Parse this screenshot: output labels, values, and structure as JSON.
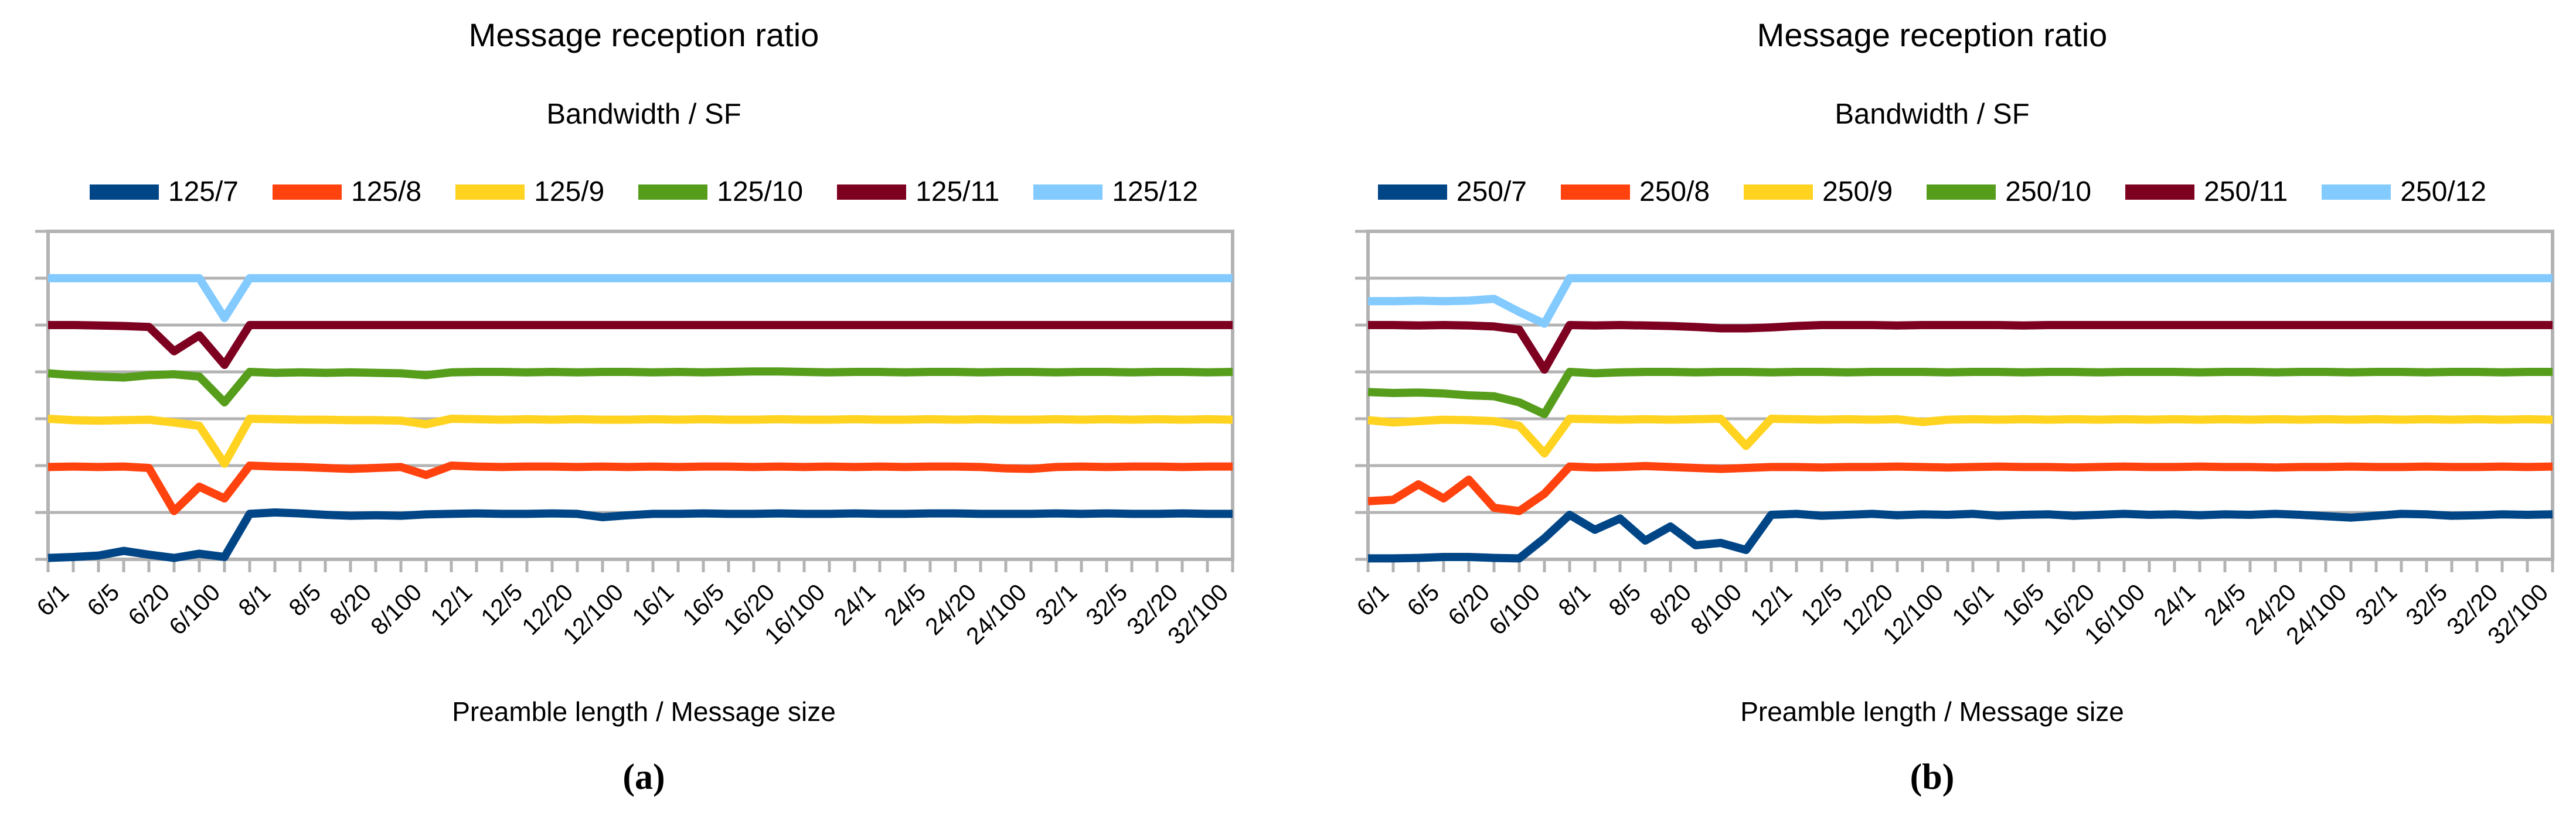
{
  "page_background": "#FFFFFF",
  "axis_color": "#B3B3B3",
  "chart_data": [
    {
      "type": "line",
      "title": "Message reception ratio",
      "subtitle": "Bandwidth / SF",
      "xlabel": "Preamble length / Message size",
      "caption": "(a)",
      "legend_position": "top",
      "grid": "horizontal",
      "ylim": [
        0,
        7
      ],
      "y_tick_labels": [],
      "x_tick_labels": [
        "6/1",
        "6/5",
        "6/20",
        "6/100",
        "8/1",
        "8/5",
        "8/20",
        "8/100",
        "12/1",
        "12/5",
        "12/20",
        "12/100",
        "16/1",
        "16/5",
        "16/20",
        "16/100",
        "24/1",
        "24/5",
        "24/20",
        "24/100",
        "32/1",
        "32/5",
        "32/20",
        "32/100"
      ],
      "points_per_tick_label": 2,
      "n_points": 48,
      "note": "Each series shows a 0-1 reception ratio drawn at vertical offset = series index (125/7 lowest band, 125/12 top band).",
      "series": [
        {
          "name": "125/7",
          "color": "#004586",
          "offset": 0,
          "values": [
            0.03,
            0.05,
            0.08,
            0.18,
            0.1,
            0.03,
            0.12,
            0.05,
            0.97,
            1.0,
            0.98,
            0.95,
            0.93,
            0.94,
            0.93,
            0.96,
            0.97,
            0.98,
            0.97,
            0.97,
            0.98,
            0.97,
            0.9,
            0.94,
            0.97,
            0.97,
            0.98,
            0.97,
            0.97,
            0.98,
            0.97,
            0.97,
            0.98,
            0.97,
            0.97,
            0.98,
            0.98,
            0.97,
            0.97,
            0.97,
            0.98,
            0.97,
            0.98,
            0.97,
            0.97,
            0.98,
            0.97,
            0.97
          ]
        },
        {
          "name": "125/8",
          "color": "#FF420E",
          "offset": 1,
          "values": [
            0.97,
            0.98,
            0.97,
            0.98,
            0.95,
            0.03,
            0.55,
            0.3,
            1.0,
            0.98,
            0.97,
            0.95,
            0.93,
            0.95,
            0.97,
            0.8,
            1.0,
            0.98,
            0.97,
            0.98,
            0.98,
            0.97,
            0.98,
            0.97,
            0.98,
            0.97,
            0.98,
            0.98,
            0.97,
            0.98,
            0.97,
            0.98,
            0.97,
            0.98,
            0.97,
            0.98,
            0.98,
            0.97,
            0.94,
            0.93,
            0.97,
            0.98,
            0.97,
            0.98,
            0.98,
            0.97,
            0.98,
            0.98
          ]
        },
        {
          "name": "125/9",
          "color": "#FFD320",
          "offset": 2,
          "values": [
            1.0,
            0.97,
            0.96,
            0.97,
            0.98,
            0.92,
            0.85,
            0.04,
            1.0,
            0.99,
            0.98,
            0.98,
            0.97,
            0.97,
            0.96,
            0.88,
            1.0,
            0.99,
            0.98,
            0.99,
            0.98,
            0.99,
            0.98,
            0.98,
            0.99,
            0.98,
            0.99,
            0.98,
            0.98,
            0.99,
            0.98,
            0.98,
            0.99,
            0.98,
            0.98,
            0.99,
            0.98,
            0.99,
            0.98,
            0.98,
            0.99,
            0.98,
            0.99,
            0.98,
            0.99,
            0.98,
            0.99,
            0.98
          ]
        },
        {
          "name": "125/10",
          "color": "#579D1C",
          "offset": 3,
          "values": [
            0.97,
            0.93,
            0.9,
            0.88,
            0.93,
            0.95,
            0.9,
            0.35,
            1.0,
            0.98,
            0.99,
            0.98,
            0.99,
            0.98,
            0.97,
            0.93,
            0.99,
            1.0,
            1.0,
            0.99,
            1.0,
            0.99,
            1.0,
            1.0,
            0.99,
            1.0,
            0.99,
            1.0,
            1.01,
            1.01,
            1.0,
            0.99,
            1.0,
            1.0,
            0.99,
            1.0,
            1.0,
            0.99,
            1.0,
            1.0,
            0.99,
            1.0,
            1.0,
            0.99,
            1.0,
            1.0,
            0.99,
            1.0
          ]
        },
        {
          "name": "125/11",
          "color": "#7E0021",
          "offset": 4,
          "values": [
            1.0,
            1.0,
            0.99,
            0.98,
            0.96,
            0.44,
            0.78,
            0.15,
            1.0,
            1.0,
            1.0,
            1.0,
            1.0,
            1.0,
            1.0,
            1.0,
            1.0,
            1.0,
            1.0,
            1.0,
            1.0,
            1.0,
            1.0,
            1.0,
            1.0,
            1.0,
            1.0,
            1.0,
            1.0,
            1.0,
            1.0,
            1.0,
            1.0,
            1.0,
            1.0,
            1.0,
            1.0,
            1.0,
            1.0,
            1.0,
            1.0,
            1.0,
            1.0,
            1.0,
            1.0,
            1.0,
            1.0,
            1.0
          ]
        },
        {
          "name": "125/12",
          "color": "#83CAFF",
          "offset": 5,
          "values": [
            1.0,
            1.0,
            1.0,
            1.0,
            1.0,
            1.0,
            1.0,
            0.15,
            1.0,
            1.0,
            1.0,
            1.0,
            1.0,
            1.0,
            1.0,
            1.0,
            1.0,
            1.0,
            1.0,
            1.0,
            1.0,
            1.0,
            1.0,
            1.0,
            1.0,
            1.0,
            1.0,
            1.0,
            1.0,
            1.0,
            1.0,
            1.0,
            1.0,
            1.0,
            1.0,
            1.0,
            1.0,
            1.0,
            1.0,
            1.0,
            1.0,
            1.0,
            1.0,
            1.0,
            1.0,
            1.0,
            1.0,
            1.0
          ]
        }
      ]
    },
    {
      "type": "line",
      "title": "Message reception ratio",
      "subtitle": "Bandwidth / SF",
      "xlabel": "Preamble length / Message size",
      "caption": "(b)",
      "legend_position": "top",
      "grid": "horizontal",
      "ylim": [
        0,
        7
      ],
      "y_tick_labels": [],
      "x_tick_labels": [
        "6/1",
        "6/5",
        "6/20",
        "6/100",
        "8/1",
        "8/5",
        "8/20",
        "8/100",
        "12/1",
        "12/5",
        "12/20",
        "12/100",
        "16/1",
        "16/5",
        "16/20",
        "16/100",
        "24/1",
        "24/5",
        "24/20",
        "24/100",
        "32/1",
        "32/5",
        "32/20",
        "32/100"
      ],
      "points_per_tick_label": 2,
      "n_points": 48,
      "note": "Each series shows a 0-1 reception ratio drawn at vertical offset = series index (250/7 lowest band, 250/12 top band).",
      "series": [
        {
          "name": "250/7",
          "color": "#004586",
          "offset": 0,
          "values": [
            0.02,
            0.02,
            0.03,
            0.05,
            0.05,
            0.03,
            0.02,
            0.45,
            0.95,
            0.63,
            0.87,
            0.4,
            0.7,
            0.3,
            0.35,
            0.2,
            0.95,
            0.97,
            0.93,
            0.95,
            0.97,
            0.94,
            0.96,
            0.95,
            0.97,
            0.93,
            0.95,
            0.96,
            0.93,
            0.95,
            0.97,
            0.95,
            0.96,
            0.94,
            0.96,
            0.95,
            0.97,
            0.95,
            0.92,
            0.89,
            0.93,
            0.97,
            0.96,
            0.93,
            0.94,
            0.96,
            0.95,
            0.96
          ]
        },
        {
          "name": "250/8",
          "color": "#FF420E",
          "offset": 1,
          "values": [
            0.24,
            0.27,
            0.6,
            0.3,
            0.7,
            0.1,
            0.03,
            0.4,
            0.98,
            0.96,
            0.97,
            0.99,
            0.97,
            0.95,
            0.93,
            0.95,
            0.97,
            0.97,
            0.96,
            0.97,
            0.97,
            0.98,
            0.97,
            0.96,
            0.97,
            0.98,
            0.97,
            0.97,
            0.96,
            0.97,
            0.98,
            0.97,
            0.97,
            0.98,
            0.97,
            0.97,
            0.96,
            0.97,
            0.97,
            0.98,
            0.97,
            0.97,
            0.98,
            0.97,
            0.97,
            0.98,
            0.97,
            0.98
          ]
        },
        {
          "name": "250/9",
          "color": "#FFD320",
          "offset": 2,
          "values": [
            0.97,
            0.92,
            0.95,
            0.98,
            0.97,
            0.95,
            0.85,
            0.26,
            1.0,
            0.99,
            0.98,
            0.99,
            0.98,
            0.99,
            1.0,
            0.42,
            1.0,
            0.99,
            0.98,
            0.99,
            0.98,
            0.99,
            0.93,
            0.98,
            0.99,
            0.98,
            0.99,
            0.98,
            0.99,
            0.98,
            0.99,
            0.98,
            0.99,
            0.98,
            0.99,
            0.98,
            0.99,
            0.98,
            0.99,
            0.98,
            0.99,
            0.98,
            0.99,
            0.98,
            0.99,
            0.98,
            0.99,
            0.98
          ]
        },
        {
          "name": "250/10",
          "color": "#579D1C",
          "offset": 3,
          "values": [
            0.57,
            0.55,
            0.56,
            0.54,
            0.5,
            0.48,
            0.35,
            0.1,
            1.0,
            0.97,
            0.99,
            1.0,
            1.0,
            0.99,
            1.0,
            1.0,
            0.99,
            1.0,
            1.0,
            0.99,
            1.0,
            1.0,
            1.0,
            0.99,
            1.0,
            1.0,
            0.99,
            1.0,
            1.0,
            0.99,
            1.0,
            1.0,
            1.0,
            0.99,
            1.0,
            1.0,
            0.99,
            1.0,
            1.0,
            0.99,
            1.0,
            1.0,
            0.99,
            1.0,
            1.0,
            0.99,
            1.0,
            1.0
          ]
        },
        {
          "name": "250/11",
          "color": "#7E0021",
          "offset": 4,
          "values": [
            1.0,
            1.0,
            0.99,
            1.0,
            0.99,
            0.97,
            0.9,
            0.05,
            1.0,
            0.99,
            1.0,
            0.99,
            0.98,
            0.96,
            0.93,
            0.93,
            0.95,
            0.98,
            1.0,
            1.0,
            1.0,
            0.99,
            1.0,
            1.0,
            1.0,
            1.0,
            0.99,
            1.0,
            1.0,
            1.0,
            1.0,
            1.0,
            1.0,
            1.0,
            1.0,
            1.0,
            1.0,
            1.0,
            1.0,
            1.0,
            1.0,
            1.0,
            1.0,
            1.0,
            1.0,
            1.0,
            1.0,
            1.0
          ]
        },
        {
          "name": "250/12",
          "color": "#83CAFF",
          "offset": 5,
          "values": [
            0.51,
            0.51,
            0.52,
            0.51,
            0.52,
            0.56,
            0.28,
            0.03,
            1.0,
            1.0,
            1.0,
            1.0,
            1.0,
            1.0,
            1.0,
            1.0,
            1.0,
            1.0,
            1.0,
            1.0,
            1.0,
            1.0,
            1.0,
            1.0,
            1.0,
            1.0,
            1.0,
            1.0,
            1.0,
            1.0,
            1.0,
            1.0,
            1.0,
            1.0,
            1.0,
            1.0,
            1.0,
            1.0,
            1.0,
            1.0,
            1.0,
            1.0,
            1.0,
            1.0,
            1.0,
            1.0,
            1.0,
            1.0
          ]
        }
      ]
    }
  ]
}
